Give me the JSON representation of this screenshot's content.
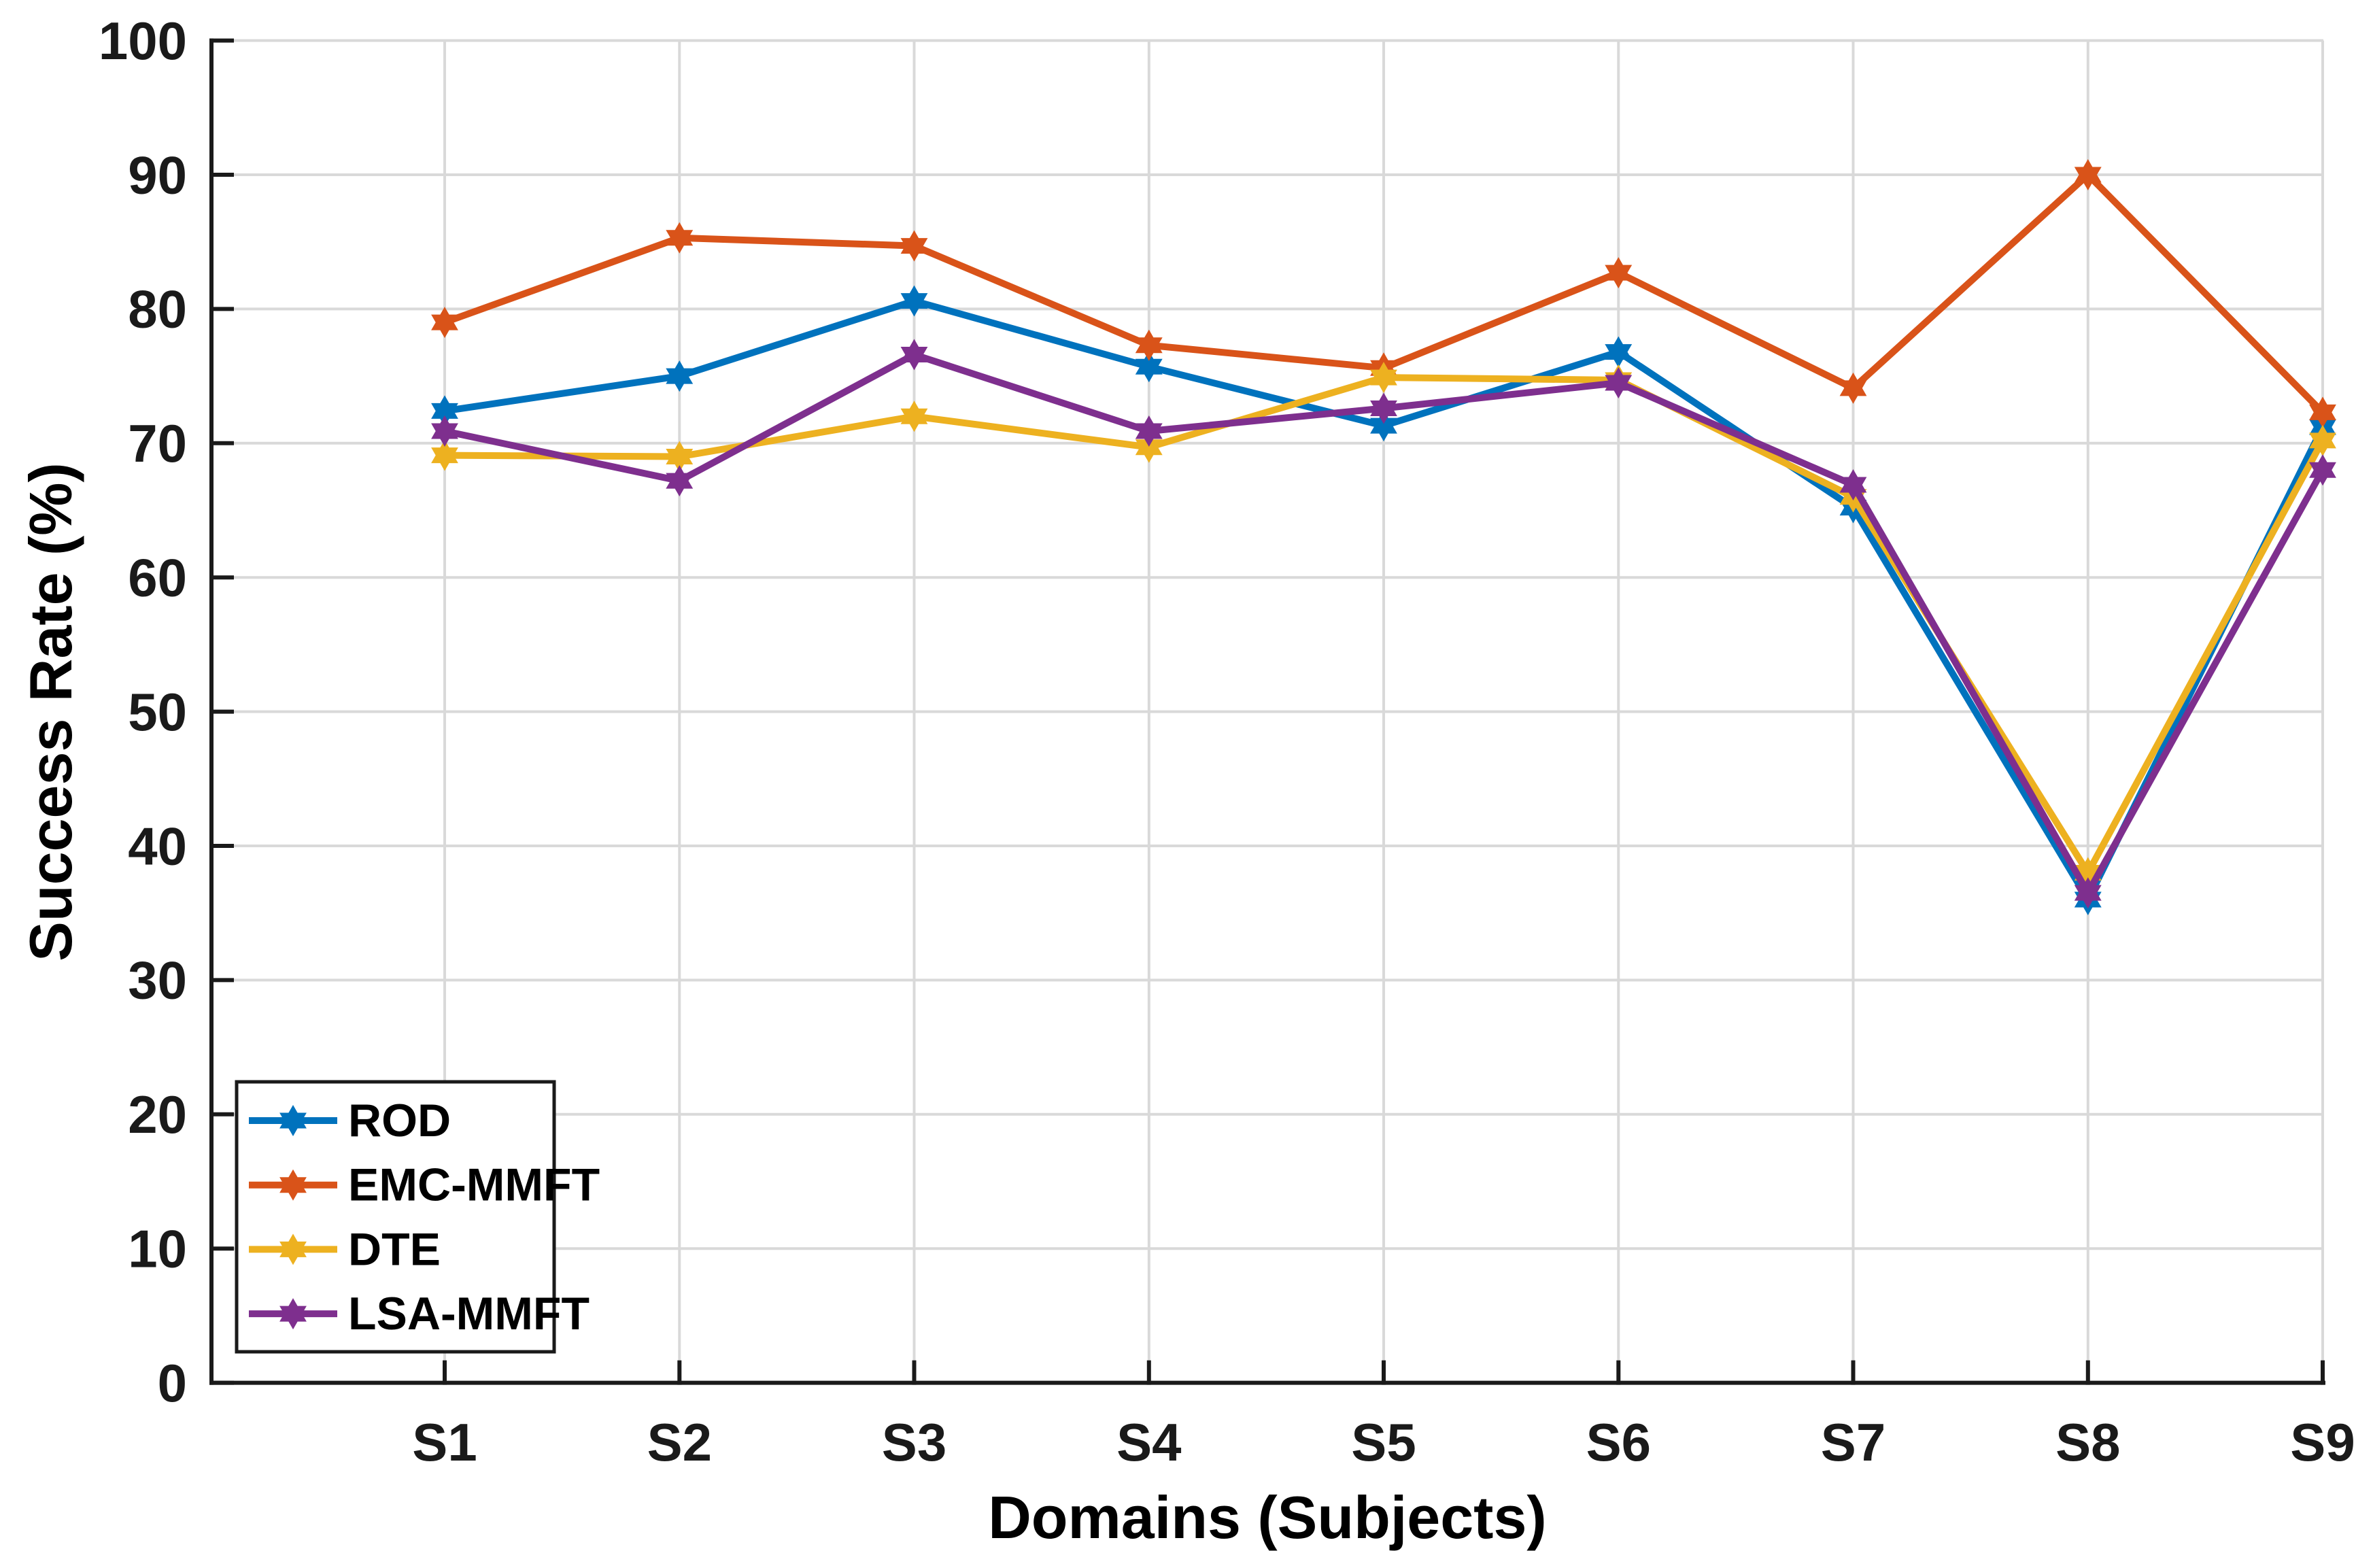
{
  "figure": {
    "background": "#ffffff",
    "axis_color": "#1a1a1a",
    "grid_color": "#d9d9d9",
    "marker_shape": "hexagram-icon"
  },
  "chart_data": {
    "type": "line",
    "title": "",
    "xlabel": "Domains (Subjects)",
    "ylabel": "Success Rate (%)",
    "categories": [
      "S1",
      "S2",
      "S3",
      "S4",
      "S5",
      "S6",
      "S7",
      "S8",
      "S9"
    ],
    "ylim": [
      0,
      100
    ],
    "ytick_step": 10,
    "ytick_labels": [
      "0",
      "10",
      "20",
      "30",
      "40",
      "50",
      "60",
      "70",
      "80",
      "90",
      "100"
    ],
    "grid": true,
    "legend_position": "bottom-left",
    "legend_entries": [
      "ROD",
      "EMC-MMFT",
      "DTE",
      "LSA-MMFT"
    ],
    "series": [
      {
        "name": "ROD",
        "color": "#0072BD",
        "values": [
          72.4,
          75.0,
          80.6,
          75.7,
          71.3,
          76.8,
          65.2,
          36.0,
          71.2
        ]
      },
      {
        "name": "EMC-MMFT",
        "color": "#D95319",
        "values": [
          79.0,
          85.3,
          84.7,
          77.3,
          75.6,
          82.7,
          74.1,
          90.0,
          72.3
        ]
      },
      {
        "name": "DTE",
        "color": "#EDB120",
        "values": [
          69.1,
          69.0,
          72.0,
          69.7,
          74.9,
          74.7,
          66.0,
          38.0,
          70.2
        ]
      },
      {
        "name": "LSA-MMFT",
        "color": "#7E2F8E",
        "values": [
          70.9,
          67.2,
          76.6,
          70.9,
          72.6,
          74.5,
          66.9,
          36.5,
          68.0
        ]
      }
    ]
  }
}
